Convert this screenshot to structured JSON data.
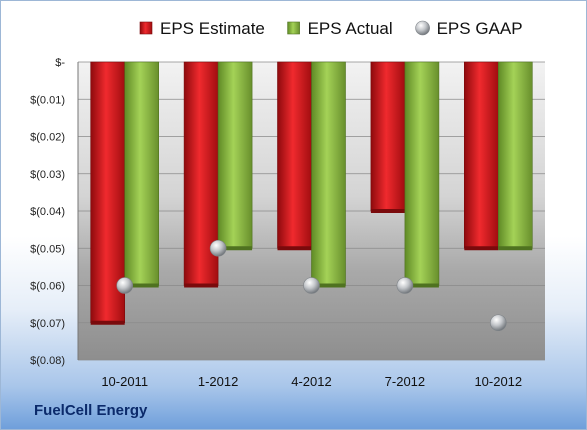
{
  "brand": "FuelCell Energy",
  "chart_data": {
    "type": "bar",
    "title": "",
    "xlabel": "",
    "ylabel": "",
    "categories": [
      "10-2011",
      "1-2012",
      "4-2012",
      "7-2012",
      "10-2012"
    ],
    "series": [
      {
        "name": "EPS Estimate",
        "kind": "bar",
        "color": "#e11a1f",
        "values": [
          -0.07,
          -0.06,
          -0.05,
          -0.04,
          -0.05
        ]
      },
      {
        "name": "EPS Actual",
        "kind": "bar",
        "color": "#8cbe3f",
        "values": [
          -0.06,
          -0.05,
          -0.06,
          -0.06,
          -0.05
        ]
      },
      {
        "name": "EPS GAAP",
        "kind": "marker",
        "color": "#b8bcc0",
        "values": [
          -0.06,
          -0.05,
          -0.06,
          -0.06,
          -0.07
        ]
      }
    ],
    "ylim": [
      -0.08,
      0
    ],
    "yticks": [
      0,
      -0.01,
      -0.02,
      -0.03,
      -0.04,
      -0.05,
      -0.06,
      -0.07,
      -0.08
    ],
    "ytick_labels": [
      "$-",
      "$(0.01)",
      "$(0.02)",
      "$(0.03)",
      "$(0.04)",
      "$(0.05)",
      "$(0.06)",
      "$(0.07)",
      "$(0.08)"
    ],
    "grid": true,
    "legend_position": "top"
  }
}
